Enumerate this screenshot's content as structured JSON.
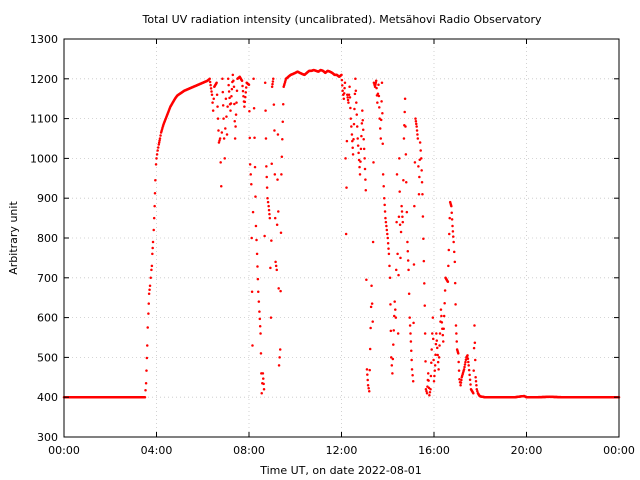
{
  "chart_data": {
    "type": "scatter",
    "title": "Total UV radiation intensity (uncalibrated). Metsähovi Radio Observatory",
    "xlabel": "Time UT, on date 2022-08-01",
    "ylabel": "Arbitrary unit",
    "xlim": [
      0,
      24
    ],
    "ylim": [
      300,
      1300
    ],
    "xticks": [
      0,
      4,
      8,
      12,
      16,
      20,
      24
    ],
    "xtick_labels": [
      "00:00",
      "04:00",
      "08:00",
      "12:00",
      "16:00",
      "20:00",
      "00:00"
    ],
    "yticks": [
      300,
      400,
      500,
      600,
      700,
      800,
      900,
      1000,
      1100,
      1200,
      1300
    ],
    "grid": true,
    "point_color": "#ff0000",
    "series": [
      {
        "x_unit": "hours UT",
        "points": [
          [
            0.0,
            400
          ],
          [
            0.5,
            400
          ],
          [
            1.0,
            400
          ],
          [
            1.5,
            400
          ],
          [
            2.0,
            400
          ],
          [
            2.5,
            400
          ],
          [
            3.0,
            400
          ],
          [
            3.5,
            400
          ],
          [
            3.55,
            435
          ],
          [
            3.6,
            530
          ],
          [
            3.62,
            575
          ],
          [
            3.65,
            610
          ],
          [
            3.68,
            660
          ],
          [
            3.7,
            670
          ],
          [
            3.72,
            680
          ],
          [
            3.75,
            700
          ],
          [
            3.78,
            720
          ],
          [
            3.8,
            730
          ],
          [
            3.82,
            760
          ],
          [
            3.85,
            790
          ],
          [
            3.88,
            820
          ],
          [
            3.9,
            850
          ],
          [
            3.92,
            880
          ],
          [
            3.95,
            945
          ],
          [
            3.98,
            985
          ],
          [
            4.0,
            1000
          ],
          [
            4.05,
            1020
          ],
          [
            4.1,
            1035
          ],
          [
            4.15,
            1050
          ],
          [
            4.2,
            1065
          ],
          [
            4.3,
            1085
          ],
          [
            4.4,
            1100
          ],
          [
            4.5,
            1115
          ],
          [
            4.6,
            1130
          ],
          [
            4.7,
            1140
          ],
          [
            4.8,
            1150
          ],
          [
            4.9,
            1158
          ],
          [
            5.0,
            1162
          ],
          [
            5.2,
            1170
          ],
          [
            5.4,
            1175
          ],
          [
            5.6,
            1180
          ],
          [
            5.8,
            1185
          ],
          [
            6.0,
            1190
          ],
          [
            6.2,
            1195
          ],
          [
            6.3,
            1200
          ],
          [
            6.4,
            1160
          ],
          [
            6.45,
            1120
          ],
          [
            6.5,
            1180
          ],
          [
            6.6,
            1190
          ],
          [
            6.7,
            1040
          ],
          [
            6.75,
            1050
          ],
          [
            6.8,
            930
          ],
          [
            6.85,
            1200
          ],
          [
            6.9,
            1100
          ],
          [
            6.95,
            1000
          ],
          [
            7.0,
            1150
          ],
          [
            7.05,
            1060
          ],
          [
            7.1,
            1200
          ],
          [
            7.2,
            1120
          ],
          [
            7.3,
            1210
          ],
          [
            7.35,
            1180
          ],
          [
            7.4,
            1050
          ],
          [
            7.5,
            1200
          ],
          [
            7.6,
            1205
          ],
          [
            7.7,
            1195
          ],
          [
            7.8,
            1130
          ],
          [
            7.9,
            1190
          ],
          [
            8.0,
            1185
          ],
          [
            8.05,
            985
          ],
          [
            8.1,
            935
          ],
          [
            8.15,
            530
          ],
          [
            8.2,
            1200
          ],
          [
            8.3,
            830
          ],
          [
            8.35,
            760
          ],
          [
            8.4,
            665
          ],
          [
            8.45,
            615
          ],
          [
            8.5,
            560
          ],
          [
            8.55,
            410
          ],
          [
            8.6,
            460
          ],
          [
            8.65,
            420
          ],
          [
            8.7,
            1190
          ],
          [
            8.75,
            980
          ],
          [
            8.8,
            900
          ],
          [
            8.85,
            880
          ],
          [
            8.9,
            850
          ],
          [
            8.95,
            600
          ],
          [
            9.0,
            1180
          ],
          [
            9.05,
            1200
          ],
          [
            9.1,
            1070
          ],
          [
            9.15,
            740
          ],
          [
            9.2,
            720
          ],
          [
            9.25,
            1060
          ],
          [
            9.3,
            480
          ],
          [
            9.35,
            520
          ],
          [
            9.4,
            960
          ],
          [
            9.5,
            1180
          ],
          [
            9.6,
            1200
          ],
          [
            9.7,
            1205
          ],
          [
            9.8,
            1210
          ],
          [
            9.9,
            1212
          ],
          [
            10.0,
            1215
          ],
          [
            10.1,
            1218
          ],
          [
            10.2,
            1215
          ],
          [
            10.3,
            1212
          ],
          [
            10.4,
            1210
          ],
          [
            10.5,
            1215
          ],
          [
            10.6,
            1220
          ],
          [
            10.7,
            1220
          ],
          [
            10.8,
            1222
          ],
          [
            10.9,
            1220
          ],
          [
            11.0,
            1218
          ],
          [
            11.1,
            1222
          ],
          [
            11.2,
            1220
          ],
          [
            11.3,
            1215
          ],
          [
            11.4,
            1220
          ],
          [
            11.5,
            1218
          ],
          [
            11.6,
            1215
          ],
          [
            11.7,
            1210
          ],
          [
            11.8,
            1210
          ],
          [
            11.9,
            1205
          ],
          [
            12.0,
            1210
          ],
          [
            12.05,
            1170
          ],
          [
            12.1,
            1150
          ],
          [
            12.15,
            1190
          ],
          [
            12.2,
            810
          ],
          [
            12.25,
            1160
          ],
          [
            12.3,
            1140
          ],
          [
            12.35,
            1180
          ],
          [
            12.4,
            1100
          ],
          [
            12.45,
            1060
          ],
          [
            12.5,
            1010
          ],
          [
            12.6,
            1200
          ],
          [
            12.7,
            1050
          ],
          [
            12.8,
            960
          ],
          [
            12.9,
            1120
          ],
          [
            13.0,
            1000
          ],
          [
            13.05,
            920
          ],
          [
            13.1,
            470
          ],
          [
            13.15,
            430
          ],
          [
            13.2,
            415
          ],
          [
            13.3,
            680
          ],
          [
            13.35,
            590
          ],
          [
            13.4,
            1190
          ],
          [
            13.45,
            1180
          ],
          [
            13.5,
            1195
          ],
          [
            13.55,
            1140
          ],
          [
            13.6,
            1185
          ],
          [
            13.65,
            1100
          ],
          [
            13.7,
            1050
          ],
          [
            13.75,
            1190
          ],
          [
            13.8,
            960
          ],
          [
            13.85,
            900
          ],
          [
            13.9,
            850
          ],
          [
            14.0,
            800
          ],
          [
            14.05,
            760
          ],
          [
            14.1,
            700
          ],
          [
            14.15,
            500
          ],
          [
            14.2,
            460
          ],
          [
            14.3,
            640
          ],
          [
            14.35,
            600
          ],
          [
            14.4,
            960
          ],
          [
            14.45,
            560
          ],
          [
            14.5,
            1000
          ],
          [
            14.55,
            750
          ],
          [
            14.6,
            880
          ],
          [
            14.65,
            840
          ],
          [
            14.7,
            1050
          ],
          [
            14.75,
            1150
          ],
          [
            14.8,
            940
          ],
          [
            14.85,
            790
          ],
          [
            14.9,
            720
          ],
          [
            14.95,
            600
          ],
          [
            15.0,
            540
          ],
          [
            15.05,
            470
          ],
          [
            15.1,
            440
          ],
          [
            15.15,
            880
          ],
          [
            15.2,
            1100
          ],
          [
            15.25,
            1080
          ],
          [
            15.3,
            1050
          ],
          [
            15.35,
            910
          ],
          [
            15.4,
            1040
          ],
          [
            15.45,
            1000
          ],
          [
            15.5,
            910
          ],
          [
            15.6,
            630
          ],
          [
            15.65,
            420
          ],
          [
            15.7,
            410
          ],
          [
            15.75,
            460
          ],
          [
            15.8,
            405
          ],
          [
            15.85,
            420
          ],
          [
            15.9,
            520
          ],
          [
            15.95,
            600
          ],
          [
            16.0,
            440
          ],
          [
            16.05,
            480
          ],
          [
            16.1,
            560
          ],
          [
            16.2,
            470
          ],
          [
            16.3,
            620
          ],
          [
            16.4,
            540
          ],
          [
            16.5,
            700
          ],
          [
            16.6,
            690
          ],
          [
            16.7,
            890
          ],
          [
            16.75,
            880
          ],
          [
            16.8,
            830
          ],
          [
            16.85,
            790
          ],
          [
            16.9,
            740
          ],
          [
            16.95,
            580
          ],
          [
            17.0,
            520
          ],
          [
            17.05,
            510
          ],
          [
            17.1,
            445
          ],
          [
            17.15,
            430
          ],
          [
            17.2,
            450
          ],
          [
            17.3,
            470
          ],
          [
            17.4,
            500
          ],
          [
            17.45,
            505
          ],
          [
            17.5,
            480
          ],
          [
            17.6,
            420
          ],
          [
            17.7,
            410
          ],
          [
            17.75,
            580
          ],
          [
            17.8,
            450
          ],
          [
            17.85,
            420
          ],
          [
            17.9,
            410
          ],
          [
            17.95,
            405
          ],
          [
            18.0,
            402
          ],
          [
            18.2,
            400
          ],
          [
            18.5,
            400
          ],
          [
            19.0,
            400
          ],
          [
            19.5,
            400
          ],
          [
            19.9,
            403
          ],
          [
            20.0,
            400
          ],
          [
            20.5,
            400
          ],
          [
            21.0,
            401
          ],
          [
            21.5,
            400
          ],
          [
            22.0,
            400
          ],
          [
            22.5,
            400
          ],
          [
            23.0,
            400
          ],
          [
            23.5,
            400
          ],
          [
            24.0,
            400
          ]
        ]
      }
    ]
  }
}
